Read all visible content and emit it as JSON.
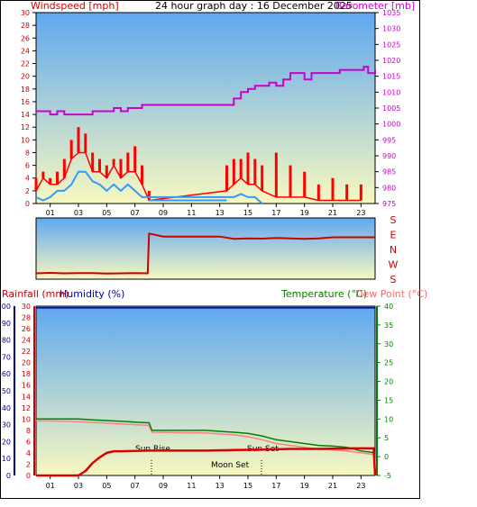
{
  "header": {
    "title": "24 hour graph day : 16 December 2025",
    "left_title": "Windspeed [mph]",
    "right_title": "Barometer [mb]"
  },
  "lower_header": {
    "rain": "Rainfall (mm)",
    "humidity": "Humidity (%)",
    "temperature": "Temperature (°C)",
    "dew": "Dew Point (°C)"
  },
  "annotations": {
    "sun_rise": "Sun Rise",
    "sun_set": "Sun Set",
    "moon_set": "Moon Set"
  },
  "colors": {
    "wind": "#ff0000",
    "wind_avg": "#3399ff",
    "barometer": "#cc00cc",
    "direction": "#cc0000",
    "humidity": "#000099",
    "temperature": "#008000",
    "dew": "#ff8080",
    "rain": "#dd0000",
    "sky_top": "#5fa8f0",
    "sky_bottom": "#f8f8c0"
  },
  "chart_data": [
    {
      "type": "line",
      "name": "wind-barometer",
      "x_ticks": [
        "01",
        "03",
        "05",
        "07",
        "09",
        "11",
        "13",
        "15",
        "17",
        "19",
        "21",
        "23"
      ],
      "y_left": {
        "label": "Windspeed [mph]",
        "ylim": [
          0,
          30
        ],
        "ticks": [
          0,
          2,
          4,
          6,
          8,
          10,
          12,
          14,
          16,
          18,
          20,
          22,
          24,
          26,
          28,
          30
        ]
      },
      "y_right": {
        "label": "Barometer [mb]",
        "ylim": [
          975,
          1035
        ],
        "ticks": [
          975,
          980,
          985,
          990,
          995,
          1000,
          1005,
          1010,
          1015,
          1020,
          1025,
          1030,
          1035
        ]
      },
      "series": [
        {
          "name": "Windspeed",
          "axis": "left",
          "x": [
            0,
            0.5,
            1,
            1.5,
            2,
            2.5,
            3,
            3.5,
            4,
            4.5,
            5,
            5.5,
            6,
            6.5,
            7,
            7.5,
            8,
            13.5,
            14,
            14.5,
            15,
            15.5,
            16,
            17,
            18,
            19,
            20,
            21,
            22,
            23
          ],
          "y": [
            2,
            4,
            3,
            3,
            4,
            7,
            8,
            8,
            5,
            5,
            4,
            6,
            4,
            5,
            5,
            3,
            0.5,
            2,
            3,
            4,
            3,
            3,
            2,
            1,
            1,
            1,
            0.5,
            0.5,
            0.5,
            0.5
          ],
          "gust": [
            4,
            5,
            4,
            5,
            7,
            10,
            12,
            11,
            8,
            7,
            6,
            7,
            7,
            8,
            9,
            6,
            2,
            6,
            7,
            7,
            8,
            7,
            6,
            8,
            6,
            5,
            3,
            4,
            3,
            3
          ]
        },
        {
          "name": "Average",
          "axis": "left",
          "x": [
            0,
            0.5,
            1,
            1.5,
            2,
            2.5,
            3,
            3.5,
            4,
            4.5,
            5,
            5.5,
            6,
            6.5,
            7,
            7.5,
            8,
            13.5,
            14,
            14.5,
            15,
            15.5,
            16
          ],
          "y": [
            1,
            0.5,
            1,
            2,
            2,
            3,
            5,
            5,
            3.5,
            3,
            2,
            3,
            2,
            3,
            2,
            1,
            1,
            1,
            1,
            1.5,
            1,
            1,
            0
          ]
        },
        {
          "name": "Barometer",
          "axis": "right",
          "x": [
            0,
            0.5,
            1,
            1.5,
            2,
            2.5,
            3,
            3.5,
            4,
            4.5,
            5,
            5.5,
            6,
            6.5,
            7,
            7.5,
            8,
            9,
            10,
            11,
            12,
            13,
            13.5,
            14,
            14.5,
            15,
            15.5,
            16,
            16.5,
            17,
            17.5,
            18,
            18.5,
            19,
            19.5,
            20,
            20.5,
            21,
            21.5,
            22,
            22.5,
            23,
            23.2,
            23.5,
            24
          ],
          "y": [
            1004,
            1004,
            1003,
            1004,
            1003,
            1003,
            1003,
            1003,
            1004,
            1004,
            1004,
            1005,
            1004,
            1005,
            1005,
            1006,
            1006,
            1006,
            1006,
            1006,
            1006,
            1006,
            1006,
            1008,
            1010,
            1011,
            1012,
            1012,
            1013,
            1012,
            1014,
            1016,
            1016,
            1014,
            1016,
            1016,
            1016,
            1016,
            1017,
            1017,
            1017,
            1017,
            1018,
            1016,
            1017
          ]
        }
      ]
    },
    {
      "type": "line",
      "name": "wind-direction",
      "y_labels": [
        "S",
        "E",
        "N",
        "W",
        "S"
      ],
      "series": [
        {
          "name": "Direction (deg)",
          "x": [
            0,
            1,
            2,
            3,
            4,
            5,
            6,
            7,
            7.9,
            8,
            9,
            10,
            11,
            12,
            13,
            14,
            15,
            16,
            17,
            18,
            19,
            20,
            21,
            22,
            23,
            24
          ],
          "y": [
            15,
            18,
            15,
            17,
            16,
            14,
            15,
            16,
            15,
            280,
            260,
            260,
            260,
            260,
            260,
            245,
            248,
            246,
            250,
            247,
            245,
            248,
            255,
            255,
            255,
            255
          ]
        }
      ]
    },
    {
      "type": "line",
      "name": "temperature-rain-humidity",
      "x_ticks": [
        "01",
        "03",
        "05",
        "07",
        "09",
        "11",
        "13",
        "15",
        "17",
        "19",
        "21",
        "23"
      ],
      "y_humidity": {
        "label": "Humidity (%)",
        "ylim": [
          0,
          100
        ],
        "ticks": [
          0,
          10,
          20,
          30,
          40,
          50,
          60,
          70,
          80,
          90,
          100
        ]
      },
      "y_rain": {
        "label": "Rainfall (mm)",
        "ylim": [
          0,
          30
        ],
        "ticks": [
          0,
          2,
          4,
          6,
          8,
          10,
          12,
          14,
          16,
          18,
          20,
          22,
          24,
          26,
          28,
          30
        ]
      },
      "y_temp": {
        "label": "Temperature (°C)",
        "ylim": [
          -5,
          40
        ],
        "ticks": [
          -5,
          0,
          5,
          10,
          15,
          20,
          25,
          30,
          35,
          40
        ]
      },
      "series": [
        {
          "name": "Temperature",
          "axis": "temp",
          "x": [
            0,
            1,
            2,
            3,
            4,
            5,
            6,
            7,
            8,
            8.2,
            12,
            14,
            15,
            16,
            17,
            18,
            19,
            20,
            21,
            22,
            23,
            24
          ],
          "y": [
            10,
            10,
            10,
            10,
            9.8,
            9.6,
            9.4,
            9.2,
            9,
            7,
            7,
            6.5,
            6.2,
            5.5,
            4.5,
            4,
            3.5,
            3,
            2.8,
            2.5,
            1.5,
            1
          ]
        },
        {
          "name": "Dew Point",
          "axis": "temp",
          "x": [
            0,
            1,
            2,
            3,
            4,
            5,
            6,
            7,
            8,
            8.2,
            12,
            14,
            15,
            16,
            17,
            18,
            19,
            20,
            21,
            22,
            23,
            24
          ],
          "y": [
            9.5,
            9.5,
            9.4,
            9.3,
            9.1,
            8.9,
            8.7,
            8.5,
            8.3,
            6.5,
            6.3,
            5.8,
            5.3,
            4.5,
            3.5,
            3,
            2.5,
            2,
            1.8,
            1.5,
            1,
            0.5
          ]
        },
        {
          "name": "Humidity",
          "axis": "humidity",
          "x": [
            0,
            24
          ],
          "y": [
            99,
            99
          ]
        },
        {
          "name": "Rainfall",
          "axis": "rain",
          "x": [
            0,
            3,
            3.5,
            4,
            4.5,
            5,
            5.5,
            6,
            8,
            10,
            12,
            14,
            16,
            18,
            20,
            22,
            23,
            23.9,
            24
          ],
          "y": [
            0,
            0,
            0.8,
            2.2,
            3.2,
            4,
            4.3,
            4.3,
            4.4,
            4.4,
            4.4,
            4.5,
            4.6,
            4.7,
            4.7,
            4.8,
            4.8,
            4.8,
            0
          ]
        }
      ]
    }
  ]
}
